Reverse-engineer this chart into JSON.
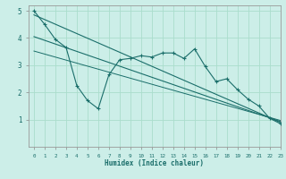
{
  "xlabel": "Humidex (Indice chaleur)",
  "ylabel": "",
  "bg_color": "#cceee8",
  "grid_color": "#aaddcc",
  "line_color": "#1a6e6a",
  "xlim": [
    -0.5,
    23
  ],
  "ylim": [
    0,
    5.2
  ],
  "xticks": [
    0,
    1,
    2,
    3,
    4,
    5,
    6,
    7,
    8,
    9,
    10,
    11,
    12,
    13,
    14,
    15,
    16,
    17,
    18,
    19,
    20,
    21,
    22,
    23
  ],
  "yticks": [
    1,
    2,
    3,
    4,
    5
  ],
  "jagged_x": [
    0,
    1,
    2,
    3,
    4,
    5,
    6,
    7,
    8,
    9,
    10,
    11,
    12,
    13,
    14,
    15,
    16,
    17,
    18,
    19,
    20,
    21,
    22,
    23
  ],
  "jagged_y": [
    5.0,
    4.5,
    3.95,
    3.65,
    2.25,
    1.7,
    1.4,
    2.65,
    3.2,
    3.25,
    3.35,
    3.3,
    3.45,
    3.45,
    3.25,
    3.6,
    2.95,
    2.4,
    2.5,
    2.1,
    1.75,
    1.5,
    1.05,
    0.85
  ],
  "line1_x": [
    0,
    23
  ],
  "line1_y": [
    4.85,
    0.9
  ],
  "line2_x": [
    0,
    23
  ],
  "line2_y": [
    4.05,
    0.93
  ],
  "line3_x": [
    0,
    23
  ],
  "line3_y": [
    3.52,
    0.97
  ]
}
